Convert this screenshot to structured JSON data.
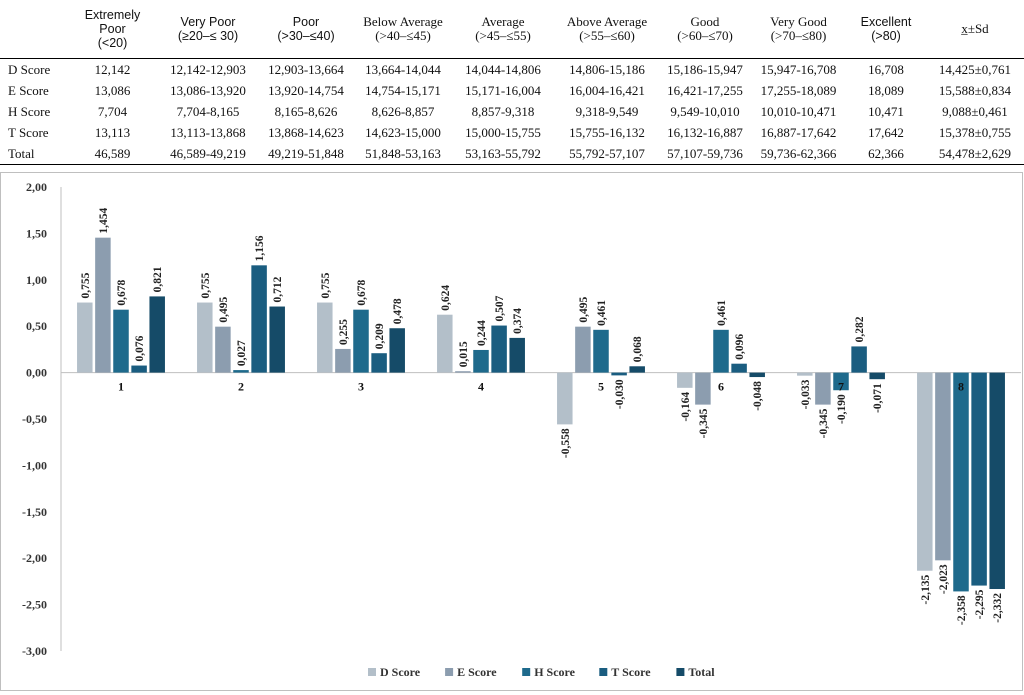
{
  "table": {
    "headers": [
      {
        "lines": [
          "",
          ""
        ],
        "font": "serif"
      },
      {
        "lines": [
          "Extremely",
          "Poor",
          "(<20)"
        ],
        "font": "sans"
      },
      {
        "lines": [
          "Very Poor",
          "(≥20–≤ 30)"
        ],
        "font": "sans"
      },
      {
        "lines": [
          "Poor",
          "(>30–≤40)"
        ],
        "font": "sans"
      },
      {
        "lines": [
          "Below Average",
          "(>40–≤45)"
        ],
        "font": "serif"
      },
      {
        "lines": [
          "Average",
          "(>45–≤55)"
        ],
        "font": "serif"
      },
      {
        "lines": [
          "Above Average",
          "(>55–≤60)"
        ],
        "font": "serif"
      },
      {
        "lines": [
          "Good",
          "(>60–≤70)"
        ],
        "font": "serif"
      },
      {
        "lines": [
          "Very Good",
          "(>70–≤80)"
        ],
        "font": "serif"
      },
      {
        "lines": [
          "Excellent",
          "(>80)"
        ],
        "font": "sans"
      },
      {
        "lines": [
          "x̲±Sd"
        ],
        "font": "serif"
      }
    ],
    "rows": [
      [
        "D Score",
        "12,142",
        "12,142-12,903",
        "12,903-13,664",
        "13,664-14,044",
        "14,044-14,806",
        "14,806-15,186",
        "15,186-15,947",
        "15,947-16,708",
        "16,708",
        "14,425±0,761"
      ],
      [
        "E Score",
        "13,086",
        "13,086-13,920",
        "13,920-14,754",
        "14,754-15,171",
        "15,171-16,004",
        "16,004-16,421",
        "16,421-17,255",
        "17,255-18,089",
        "18,089",
        "15,588±0,834"
      ],
      [
        "H Score",
        "7,704",
        "7,704-8,165",
        "8,165-8,626",
        "8,626-8,857",
        "8,857-9,318",
        "9,318-9,549",
        "9,549-10,010",
        "10,010-10,471",
        "10,471",
        "9,088±0,461"
      ],
      [
        "T Score",
        "13,113",
        "13,113-13,868",
        "13,868-14,623",
        "14,623-15,000",
        "15,000-15,755",
        "15,755-16,132",
        "16,132-16,887",
        "16,887-17,642",
        "17,642",
        "15,378±0,755"
      ],
      [
        "Total",
        "46,589",
        "46,589-49,219",
        "49,219-51,848",
        "51,848-53,163",
        "53,163-55,792",
        "55,792-57,107",
        "57,107-59,736",
        "59,736-62,366",
        "62,366",
        "54,478±2,629"
      ]
    ]
  },
  "chart_data": {
    "type": "bar",
    "categories": [
      "1",
      "2",
      "3",
      "4",
      "5",
      "6",
      "7",
      "8"
    ],
    "series": [
      {
        "name": "D Score",
        "color": "#b3bfc9",
        "values": [
          0.755,
          0.755,
          0.755,
          0.624,
          -0.558,
          -0.164,
          -0.033,
          -2.135
        ],
        "labels": [
          "0,755",
          "0,755",
          "0,755",
          "0,624",
          "-0,558",
          "-0,164",
          "-0,033",
          "-2,135"
        ]
      },
      {
        "name": "E Score",
        "color": "#8c9daf",
        "values": [
          1.454,
          0.495,
          0.255,
          0.015,
          0.495,
          -0.345,
          -0.345,
          -2.023
        ],
        "labels": [
          "1,454",
          "0,495",
          "0,255",
          "0,015",
          "0,495",
          "-0,345",
          "-0,345",
          "-2,023"
        ]
      },
      {
        "name": "H Score",
        "color": "#1e6a8c",
        "values": [
          0.678,
          0.027,
          0.678,
          0.244,
          0.461,
          0.461,
          -0.19,
          -2.358
        ],
        "labels": [
          "0,678",
          "0,027",
          "0,678",
          "0,244",
          "0,461",
          "0,461",
          "-0,190",
          "-2,358"
        ]
      },
      {
        "name": "T Score",
        "color": "#1a5d80",
        "values": [
          0.076,
          1.156,
          0.209,
          0.507,
          -0.03,
          0.096,
          0.282,
          -2.295
        ],
        "labels": [
          "0,076",
          "1,156",
          "0,209",
          "0,507",
          "-0,030",
          "0,096",
          "0,282",
          "-2,295"
        ]
      },
      {
        "name": "Total",
        "color": "#154b68",
        "values": [
          0.821,
          0.712,
          0.478,
          0.374,
          0.068,
          -0.048,
          -0.071,
          -2.332
        ],
        "labels": [
          "0,821",
          "0,712",
          "0,478",
          "0,374",
          "0,068",
          "-0,048",
          "-0,071",
          "-2,332"
        ]
      }
    ],
    "ylim": [
      -3,
      2
    ],
    "yticks": [
      2,
      1.5,
      1,
      0.5,
      0,
      -0.5,
      -1,
      -1.5,
      -2,
      -2.5,
      -3
    ],
    "ytick_labels": [
      "2,00",
      "1,50",
      "1,00",
      "0,50",
      "0,00",
      "-0,50",
      "-1,00",
      "-1,50",
      "-2,00",
      "-2,50",
      "-3,00"
    ],
    "grid": false,
    "legend": "bottom"
  }
}
